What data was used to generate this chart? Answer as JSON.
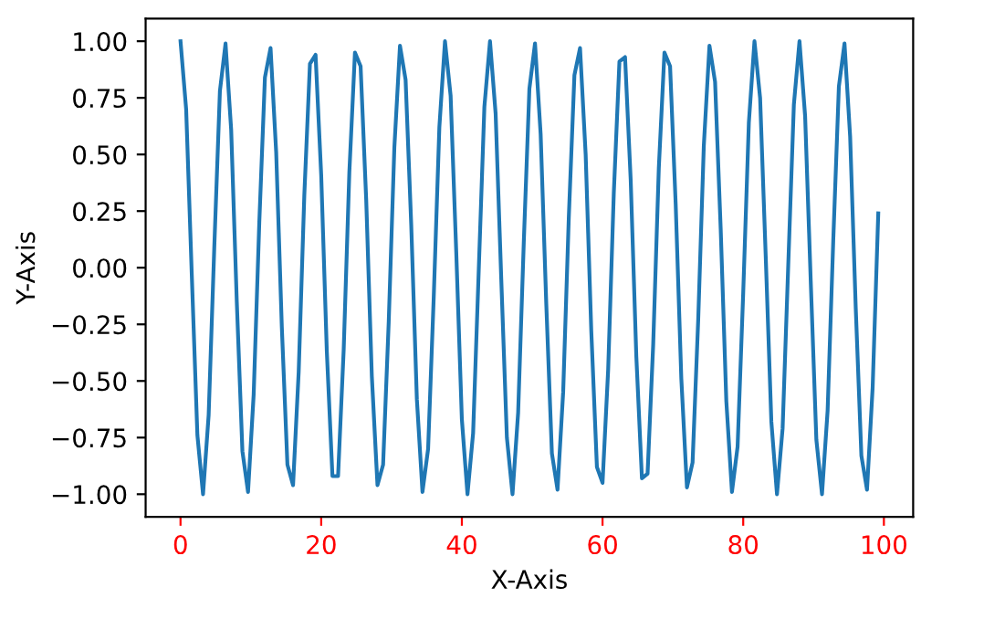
{
  "chart_data": {
    "type": "line",
    "xlabel": "X-Axis",
    "ylabel": "Y-Axis",
    "x": [
      0.0,
      0.8,
      1.6,
      2.4,
      3.2,
      4.0,
      4.8,
      5.6,
      6.4,
      7.2,
      8.0,
      8.8,
      9.6,
      10.4,
      11.2,
      12.0,
      12.8,
      13.6,
      14.4,
      15.2,
      16.0,
      16.8,
      17.6,
      18.4,
      19.2,
      20.0,
      20.8,
      21.6,
      22.4,
      23.2,
      24.0,
      24.8,
      25.6,
      26.4,
      27.2,
      28.0,
      28.8,
      29.6,
      30.4,
      31.2,
      32.0,
      32.8,
      33.6,
      34.4,
      35.2,
      36.0,
      36.8,
      37.6,
      38.4,
      39.2,
      40.0,
      40.8,
      41.6,
      42.4,
      43.2,
      44.0,
      44.8,
      45.6,
      46.4,
      47.2,
      48.0,
      48.8,
      49.6,
      50.4,
      51.2,
      52.0,
      52.8,
      53.6,
      54.4,
      55.2,
      56.0,
      56.8,
      57.6,
      58.4,
      59.2,
      60.0,
      60.8,
      61.6,
      62.4,
      63.2,
      64.0,
      64.8,
      65.6,
      66.4,
      67.2,
      68.0,
      68.8,
      69.6,
      70.4,
      71.2,
      72.0,
      72.8,
      73.6,
      74.4,
      75.2,
      76.0,
      76.8,
      77.6,
      78.4,
      79.2,
      80.0,
      80.8,
      81.6,
      82.4,
      83.2,
      84.0,
      84.8,
      85.6,
      86.4,
      87.2,
      88.0,
      88.8,
      89.6,
      90.4,
      91.2,
      92.0,
      92.8,
      93.6,
      94.4,
      95.2,
      96.0,
      96.8,
      97.6,
      98.4,
      99.2
    ],
    "series": [
      {
        "color": "#1f77b4",
        "values": [
          1.0,
          0.7,
          -0.03,
          -0.74,
          -1.0,
          -0.65,
          0.09,
          0.78,
          0.99,
          0.61,
          -0.15,
          -0.81,
          -0.99,
          -0.56,
          0.2,
          0.84,
          0.97,
          0.51,
          -0.26,
          -0.87,
          -0.96,
          -0.46,
          0.32,
          0.9,
          0.94,
          0.41,
          -0.37,
          -0.92,
          -0.92,
          -0.36,
          0.42,
          0.95,
          0.89,
          0.3,
          -0.48,
          -0.96,
          -0.87,
          -0.24,
          0.53,
          0.98,
          0.83,
          0.19,
          -0.58,
          -0.99,
          -0.8,
          -0.13,
          0.62,
          1.0,
          0.76,
          0.07,
          -0.67,
          -1.0,
          -0.73,
          -0.01,
          0.71,
          1.0,
          0.68,
          -0.05,
          -0.75,
          -1.0,
          -0.64,
          0.11,
          0.79,
          0.99,
          0.59,
          -0.16,
          -0.82,
          -0.98,
          -0.55,
          0.22,
          0.85,
          0.97,
          0.5,
          -0.28,
          -0.88,
          -0.95,
          -0.45,
          0.33,
          0.91,
          0.93,
          0.39,
          -0.39,
          -0.93,
          -0.91,
          -0.34,
          0.44,
          0.95,
          0.89,
          0.28,
          -0.49,
          -0.97,
          -0.86,
          -0.23,
          0.54,
          0.98,
          0.82,
          0.17,
          -0.59,
          -0.99,
          -0.79,
          -0.11,
          0.64,
          1.0,
          0.75,
          0.05,
          -0.68,
          -1.0,
          -0.71,
          0.01,
          0.72,
          1.0,
          0.67,
          -0.06,
          -0.76,
          -1.0,
          -0.63,
          0.12,
          0.8,
          0.99,
          0.58,
          -0.18,
          -0.83,
          -0.98,
          -0.53,
          0.24
        ]
      }
    ],
    "xlim": [
      -4.96,
      104.16
    ],
    "ylim": [
      -1.1,
      1.1
    ],
    "xticks": [
      0,
      20,
      40,
      60,
      80,
      100
    ],
    "yticks": [
      {
        "value": -1.0,
        "label": "−1.00"
      },
      {
        "value": -0.75,
        "label": "−0.75"
      },
      {
        "value": -0.5,
        "label": "−0.50"
      },
      {
        "value": -0.25,
        "label": "−0.25"
      },
      {
        "value": 0.0,
        "label": "0.00"
      },
      {
        "value": 0.25,
        "label": "0.25"
      },
      {
        "value": 0.5,
        "label": "0.50"
      },
      {
        "value": 0.75,
        "label": "0.75"
      },
      {
        "value": 1.0,
        "label": "1.00"
      }
    ]
  }
}
